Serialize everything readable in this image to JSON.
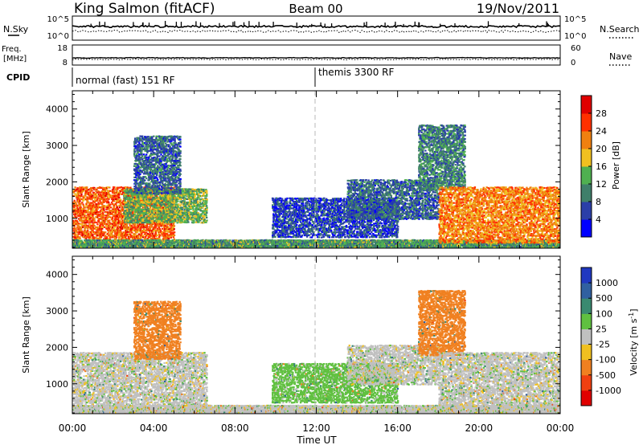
{
  "header": {
    "station": "King Salmon (fitACF)",
    "beam": "Beam 00",
    "date": "19/Nov/2011"
  },
  "summary": {
    "left_labels": [
      "N.Sky",
      "Freq.",
      "[MHz]",
      "CPID"
    ],
    "right_labels": [
      "N.Search",
      "Nave"
    ],
    "nsky_ticks": [
      "10^5",
      "10^0"
    ],
    "nsearch_ticks": [
      "10^5",
      "10^0"
    ],
    "freq_ticks": [
      "18",
      "8"
    ],
    "nave_ticks": [
      "60",
      "0"
    ],
    "cpid_segments": [
      {
        "label": "normal (fast) 151 RF",
        "start": "00:00"
      },
      {
        "label": "themis 3300 RF",
        "start": "12:00"
      }
    ]
  },
  "axes": {
    "x_label": "Time UT",
    "x_ticks": [
      "00:00",
      "04:00",
      "08:00",
      "12:00",
      "16:00",
      "20:00",
      "00:00"
    ],
    "y_label": "Slant Range [km]",
    "y_ticks": [
      "1000",
      "2000",
      "3000",
      "4000"
    ]
  },
  "colorbars": {
    "power": {
      "label": "Power [dB]",
      "ticks": [
        "4",
        "8",
        "12",
        "16",
        "20",
        "24",
        "28"
      ],
      "colors": [
        "#0000ff",
        "#2b3fa8",
        "#3f7f6a",
        "#4fb050",
        "#f0c020",
        "#f08010",
        "#ff3000",
        "#e00000"
      ]
    },
    "velocity": {
      "label": "Velocity [m s^-1]",
      "ticks": [
        "1000",
        "500",
        "100",
        "25",
        "-25",
        "-100",
        "-500",
        "-1000"
      ],
      "colors": [
        "#2038c0",
        "#3060a0",
        "#3a8a70",
        "#60c040",
        "#c0c0c0",
        "#f0c020",
        "#f08020",
        "#f04010",
        "#e00000"
      ]
    }
  },
  "chart_data": [
    {
      "type": "heatmap",
      "title": "Power",
      "x_range_hours": [
        0,
        24
      ],
      "ylim": [
        180,
        4500
      ],
      "xlabel": "",
      "ylabel": "Slant Range [km]",
      "colorbar_label": "Power [dB]",
      "colorbar_range": [
        0,
        30
      ],
      "regions": [
        {
          "name": "morning band",
          "t": [
            0.0,
            5.0
          ],
          "range": [
            450,
            1900
          ],
          "value": 24
        },
        {
          "name": "morning band upper",
          "t": [
            2.5,
            6.6
          ],
          "range": [
            900,
            1850
          ],
          "value": 14
        },
        {
          "name": "morning plumes",
          "t": [
            3.0,
            5.3
          ],
          "range": [
            1700,
            3300
          ],
          "value": 8
        },
        {
          "name": "ground scatter",
          "t": [
            0.0,
            24.0
          ],
          "range": [
            180,
            450
          ],
          "value": 12
        },
        {
          "name": "midday patches",
          "t": [
            9.8,
            16.0
          ],
          "range": [
            500,
            1600
          ],
          "value": 6
        },
        {
          "name": "evening arc",
          "t": [
            13.5,
            18.0
          ],
          "range": [
            1000,
            2100
          ],
          "value": 8
        },
        {
          "name": "evening plumes",
          "t": [
            17.0,
            19.3
          ],
          "range": [
            1800,
            3600
          ],
          "value": 10
        },
        {
          "name": "evening band",
          "t": [
            18.0,
            24.0
          ],
          "range": [
            350,
            1900
          ],
          "value": 22
        }
      ]
    },
    {
      "type": "heatmap",
      "title": "Velocity",
      "x_range_hours": [
        0,
        24
      ],
      "ylim": [
        180,
        4500
      ],
      "xlabel": "Time UT",
      "ylabel": "Slant Range [km]",
      "colorbar_label": "Velocity [m s^-1]",
      "colorbar_range": [
        -1000,
        1000
      ],
      "regions": [
        {
          "name": "morning band",
          "t": [
            0.0,
            6.6
          ],
          "range": [
            450,
            1900
          ],
          "value": 0
        },
        {
          "name": "morning plumes",
          "t": [
            3.0,
            5.3
          ],
          "range": [
            1700,
            3300
          ],
          "value": -300
        },
        {
          "name": "ground scatter",
          "t": [
            0.0,
            24.0
          ],
          "range": [
            180,
            450
          ],
          "value": 0
        },
        {
          "name": "midday patches",
          "t": [
            9.8,
            16.0
          ],
          "range": [
            500,
            1600
          ],
          "value": 50
        },
        {
          "name": "evening arc",
          "t": [
            13.5,
            18.0
          ],
          "range": [
            1000,
            2100
          ],
          "value": 0
        },
        {
          "name": "evening plumes",
          "t": [
            17.0,
            19.3
          ],
          "range": [
            1800,
            3600
          ],
          "value": -300
        },
        {
          "name": "evening band",
          "t": [
            18.0,
            24.0
          ],
          "range": [
            350,
            1900
          ],
          "value": 0
        }
      ]
    }
  ]
}
